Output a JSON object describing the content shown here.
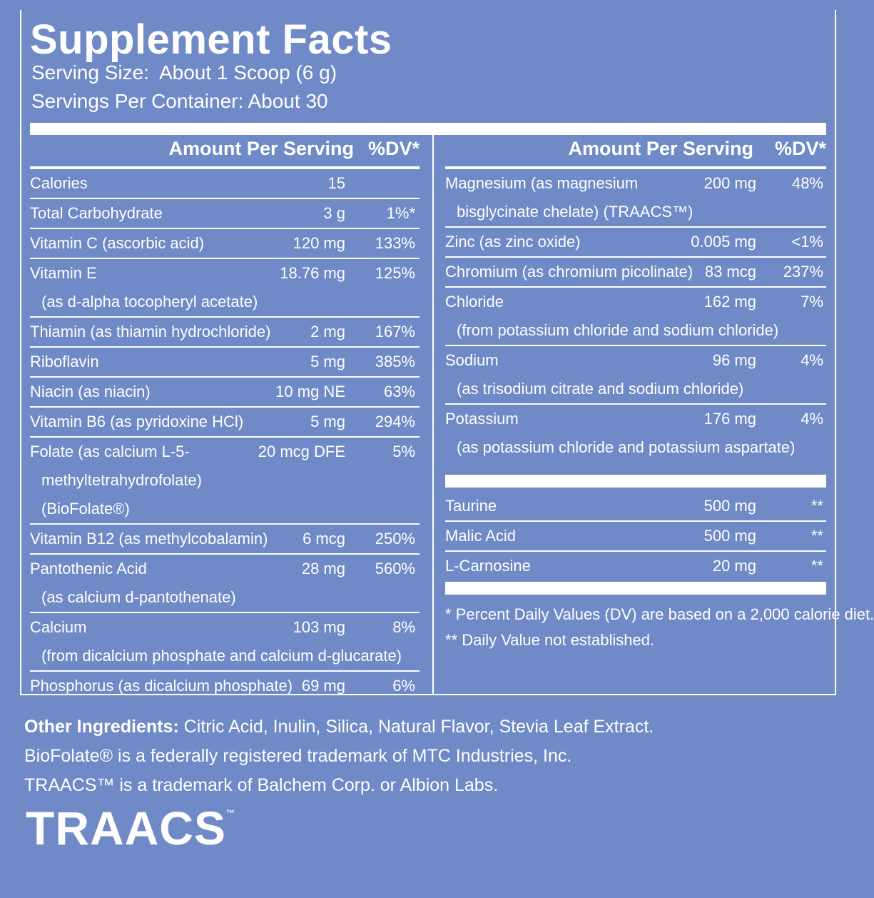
{
  "header": {
    "title": "Supplement Facts",
    "serving_size": "Serving Size:  About 1 Scoop (6 g)",
    "servings_per_container": "Servings Per Container: About 30"
  },
  "left": {
    "column_headers": [
      "Amount Per Serving",
      "%DV*"
    ],
    "rows": [
      {
        "name": "Calories",
        "amount": "15"
      },
      {
        "name": "Total Carbohydrate",
        "amount": "3 g",
        "dv": "1%*"
      },
      {
        "name": "Vitamin C (ascorbic acid)",
        "amount": "120 mg",
        "dv": "133%"
      },
      {
        "name": "Vitamin E",
        "amount": "18.76 mg",
        "dv": "125%",
        "lines": [
          "(as d-alpha tocopheryl acetate)"
        ]
      },
      {
        "name": "Thiamin (as thiamin hydrochloride)",
        "amount": "2 mg",
        "dv": "167%"
      },
      {
        "name": "Riboflavin",
        "amount": "5 mg",
        "dv": "385%"
      },
      {
        "name": "Niacin (as niacin)",
        "amount": "10 mg NE",
        "dv": "63%"
      },
      {
        "name": "Vitamin B6 (as pyridoxine HCl)",
        "amount": "5 mg",
        "dv": "294%"
      },
      {
        "name": "Folate (as calcium L-5-",
        "amount": "20 mcg DFE",
        "dv": "5%",
        "lines": [
          "methyltetrahydrofolate)",
          "(BioFolate®)"
        ]
      },
      {
        "name": "Vitamin B12 (as methylcobalamin)",
        "amount": "6 mcg",
        "dv": "250%"
      },
      {
        "name": "Pantothenic Acid",
        "amount": "28 mg",
        "dv": "560%",
        "lines": [
          "(as calcium d-pantothenate)"
        ]
      },
      {
        "name": "Calcium",
        "amount": "103 mg",
        "dv": "8%",
        "lines": [
          "(from dicalcium phosphate and calcium d-glucarate)"
        ]
      },
      {
        "name": "Phosphorus (as dicalcium phosphate)",
        "amount": "69 mg",
        "dv": "6%"
      }
    ]
  },
  "right": {
    "column_headers": [
      "Amount Per Serving",
      "%DV*"
    ],
    "rows": [
      {
        "name": "Magnesium (as magnesium",
        "amount": "200 mg",
        "dv": "48%",
        "lines": [
          "bisglycinate chelate) (TRAACS™)"
        ]
      },
      {
        "name": "Zinc (as zinc oxide)",
        "amount": "0.005 mg",
        "dv": "<1%"
      },
      {
        "name": "Chromium (as chromium picolinate)",
        "amount": "83 mcg",
        "dv": "237%"
      },
      {
        "name": "Chloride",
        "amount": "162 mg",
        "dv": "7%",
        "lines": [
          "(from potassium chloride and sodium chloride)"
        ]
      },
      {
        "name": "Sodium",
        "amount": "96 mg",
        "dv": "4%",
        "lines": [
          "(as trisodium citrate and sodium chloride)"
        ]
      },
      {
        "name": "Potassium",
        "amount": "176 mg",
        "dv": "4%",
        "lines": [
          "(as potassium chloride and potassium aspartate)"
        ]
      }
    ],
    "other_rows": [
      {
        "name": "Taurine",
        "amount": "500 mg",
        "dv": "**"
      },
      {
        "name": "Malic Acid",
        "amount": "500 mg",
        "dv": "**"
      },
      {
        "name": "L-Carnosine",
        "amount": "20 mg",
        "dv": "**"
      }
    ],
    "footnotes": [
      "* Percent Daily Values (DV) are based on a 2,000 calorie diet.",
      "** Daily Value not established."
    ]
  },
  "other_ingredients": {
    "label": "Other Ingredients:",
    "text": " Citric Acid, Inulin, Silica, Natural Flavor, Stevia Leaf Extract."
  },
  "trademarks": [
    "BioFolate® is a federally registered trademark of MTC Industries, Inc.",
    "TRAACS™ is a trademark of Balchem Corp. or Albion Labs."
  ],
  "logo": {
    "text": "TRAACS",
    "mark": "™"
  }
}
